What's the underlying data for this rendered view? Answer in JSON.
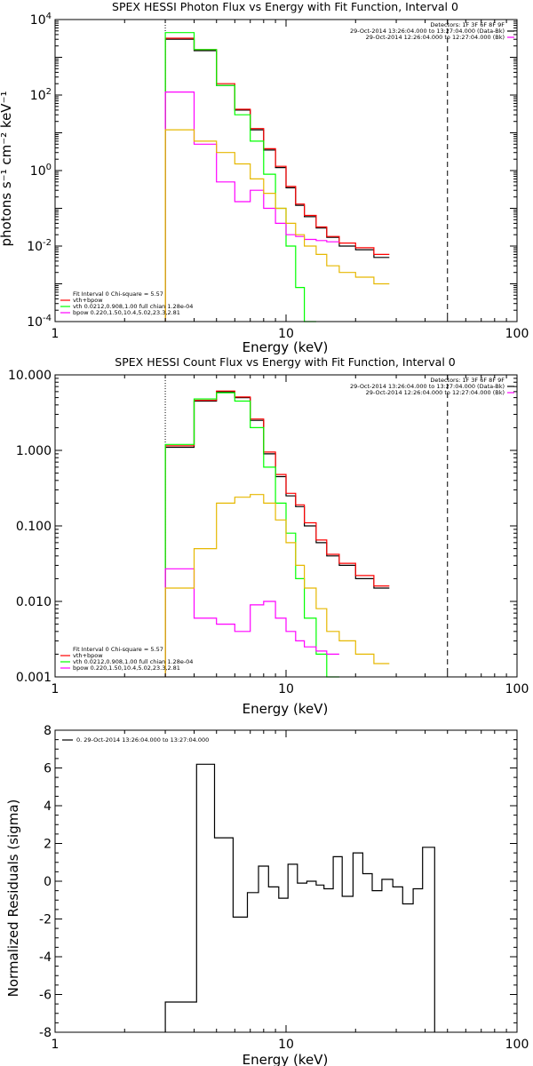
{
  "colors": {
    "background": "#ffffff",
    "axes": "#000000",
    "data_total": "#000000",
    "fit_total": "#ff0000",
    "vth": "#00ff00",
    "bpow": "#ff00ff",
    "gold": "#e6b800"
  },
  "chart_data": [
    {
      "type": "line",
      "title": "SPEX HESSI Photon Flux vs Energy with Fit Function, Interval 0",
      "xlabel": "Energy (keV)",
      "ylabel": "photons s⁻¹ cm⁻² keV⁻¹",
      "xscale": "log",
      "yscale": "log",
      "xlim": [
        1,
        100
      ],
      "ylim": [
        0.0001,
        10000
      ],
      "xticks": [
        {
          "v": 1,
          "t": "1"
        },
        {
          "v": 10,
          "t": "10"
        },
        {
          "v": 100,
          "t": "100"
        }
      ],
      "yticks": [
        {
          "v": 0.0001,
          "b": "10",
          "e": "-4"
        },
        {
          "v": 0.01,
          "b": "10",
          "e": "-2"
        },
        {
          "v": 1,
          "b": "10",
          "e": "0"
        },
        {
          "v": 100,
          "b": "10",
          "e": "2"
        },
        {
          "v": 10000,
          "b": "10",
          "e": "4"
        }
      ],
      "vlines": [
        {
          "x": 3,
          "style": "dotted"
        },
        {
          "x": 50,
          "style": "dashed"
        }
      ],
      "legend_top_right": [
        "Detectors: 1F 3F 6F 8F 9F",
        "29-Oct-2014 13:26:04.000 to 13:27:04.000 (Data-Bk)",
        "29-Oct-2014 12:26:04.000 to 12:27:04.000 (Bk)"
      ],
      "legend_bottom_left": [
        "Fit Interval 0   Chi-square = 5.57",
        "vth+bpow",
        "vth 0.0212,0.908,1.00  full chian 1.28e-04",
        "bpow 0.220,1.50,10.4,5.02,23.3,2.81"
      ],
      "series": [
        {
          "name": "Data-Bk",
          "color_key": "data_total",
          "values": [
            3000,
            1500,
            180,
            40,
            12,
            3.5,
            1.2,
            0.35,
            0.12,
            0.06,
            0.03,
            0.017,
            0.01,
            0.008,
            0.005
          ]
        },
        {
          "name": "vth+bpow",
          "color_key": "fit_total",
          "values": [
            3200,
            1600,
            200,
            42,
            13,
            3.8,
            1.3,
            0.38,
            0.13,
            0.065,
            0.032,
            0.018,
            0.012,
            0.009,
            0.006
          ]
        },
        {
          "name": "vth",
          "color_key": "vth",
          "values": [
            4500,
            1600,
            180,
            30,
            6,
            0.8,
            0.1,
            0.01,
            0.0008,
            5e-05
          ]
        },
        {
          "name": "bpow",
          "color_key": "bpow",
          "values": [
            120,
            5,
            0.5,
            0.15,
            0.3,
            0.1,
            0.04,
            0.02,
            0.018,
            0.015,
            0.014,
            0.013
          ]
        },
        {
          "name": "gold",
          "color_key": "gold",
          "values": [
            12,
            6,
            3,
            1.5,
            0.6,
            0.25,
            0.1,
            0.04,
            0.02,
            0.01,
            0.006,
            0.003,
            0.002,
            0.0015,
            0.001
          ]
        }
      ]
    },
    {
      "type": "line",
      "title": "SPEX HESSI Count Flux vs Energy with Fit Function, Interval 0",
      "xlabel": "Energy (keV)",
      "ylabel": "",
      "xscale": "log",
      "yscale": "log",
      "xlim": [
        1,
        100
      ],
      "ylim": [
        0.001,
        10
      ],
      "xticks": [
        {
          "v": 1,
          "t": "1"
        },
        {
          "v": 10,
          "t": "10"
        },
        {
          "v": 100,
          "t": "100"
        }
      ],
      "yticks": [
        {
          "v": 0.001,
          "t": "0.001"
        },
        {
          "v": 0.01,
          "t": "0.010"
        },
        {
          "v": 0.1,
          "t": "0.100"
        },
        {
          "v": 1,
          "t": "1.000"
        },
        {
          "v": 10,
          "t": "10.000"
        }
      ],
      "vlines": [
        {
          "x": 3,
          "style": "dotted"
        },
        {
          "x": 50,
          "style": "dashed"
        }
      ],
      "legend_top_right": [
        "Detectors: 1F 3F 6F 8F 9F",
        "29-Oct-2014 13:26:04.000 to 13:27:04.000 (Data-Bk)",
        "29-Oct-2014 12:26:04.000 to 12:27:04.000 (Bk)"
      ],
      "legend_bottom_left": [
        "Fit Interval 0   Chi-square = 5.57",
        "vth+bpow",
        "vth 0.0212,0.908,1.00  full chian 1.28e-04",
        "bpow 0.220,1.50,10.4,5.02,23.3,2.81"
      ],
      "series": [
        {
          "name": "Data-Bk",
          "color_key": "data_total",
          "values": [
            1.1,
            4.5,
            6.0,
            5.0,
            2.5,
            0.9,
            0.45,
            0.25,
            0.18,
            0.1,
            0.06,
            0.04,
            0.03,
            0.02,
            0.015
          ]
        },
        {
          "name": "vth+bpow",
          "color_key": "fit_total",
          "values": [
            1.15,
            4.6,
            6.1,
            5.1,
            2.6,
            0.95,
            0.48,
            0.27,
            0.19,
            0.11,
            0.065,
            0.042,
            0.032,
            0.022,
            0.016
          ]
        },
        {
          "name": "vth",
          "color_key": "vth",
          "values": [
            1.2,
            4.8,
            5.8,
            4.5,
            2.0,
            0.6,
            0.2,
            0.08,
            0.02,
            0.006,
            0.002,
            0.001
          ]
        },
        {
          "name": "bpow",
          "color_key": "bpow",
          "values": [
            0.027,
            0.006,
            0.005,
            0.004,
            0.009,
            0.01,
            0.006,
            0.004,
            0.003,
            0.0025,
            0.0022,
            0.002
          ]
        },
        {
          "name": "gold",
          "color_key": "gold",
          "values": [
            0.015,
            0.05,
            0.2,
            0.24,
            0.26,
            0.2,
            0.12,
            0.06,
            0.03,
            0.015,
            0.008,
            0.004,
            0.003,
            0.002,
            0.0015
          ]
        }
      ]
    },
    {
      "type": "line",
      "title": "",
      "xlabel": "Energy (keV)",
      "ylabel": "Normalized Residuals (sigma)",
      "xscale": "log",
      "yscale": "linear",
      "xlim": [
        1,
        100
      ],
      "ylim": [
        -8,
        8
      ],
      "xticks": [
        {
          "v": 1,
          "t": "1"
        },
        {
          "v": 10,
          "t": "10"
        },
        {
          "v": 100,
          "t": "100"
        }
      ],
      "yticks": [
        {
          "v": -8,
          "t": "-8"
        },
        {
          "v": -6,
          "t": "-6"
        },
        {
          "v": -4,
          "t": "-4"
        },
        {
          "v": -2,
          "t": "-2"
        },
        {
          "v": 0,
          "t": "0"
        },
        {
          "v": 2,
          "t": "2"
        },
        {
          "v": 4,
          "t": "4"
        },
        {
          "v": 6,
          "t": "6"
        },
        {
          "v": 8,
          "t": "8"
        }
      ],
      "legend_top_left": [
        "0. 29-Oct-2014 13:26:04.000 to 13:27:04.000"
      ],
      "series": [
        {
          "name": "0",
          "color_key": "data_total",
          "values": [
            -6.4,
            6.2,
            2.3,
            -1.9,
            -0.6,
            0.8,
            -0.3,
            -0.9,
            0.9,
            -0.1,
            0.0,
            -0.2,
            -0.4,
            1.3,
            -0.8,
            1.5,
            0.4,
            -0.5,
            0.1,
            -0.3,
            -1.2,
            -0.4,
            1.8
          ]
        }
      ]
    }
  ]
}
